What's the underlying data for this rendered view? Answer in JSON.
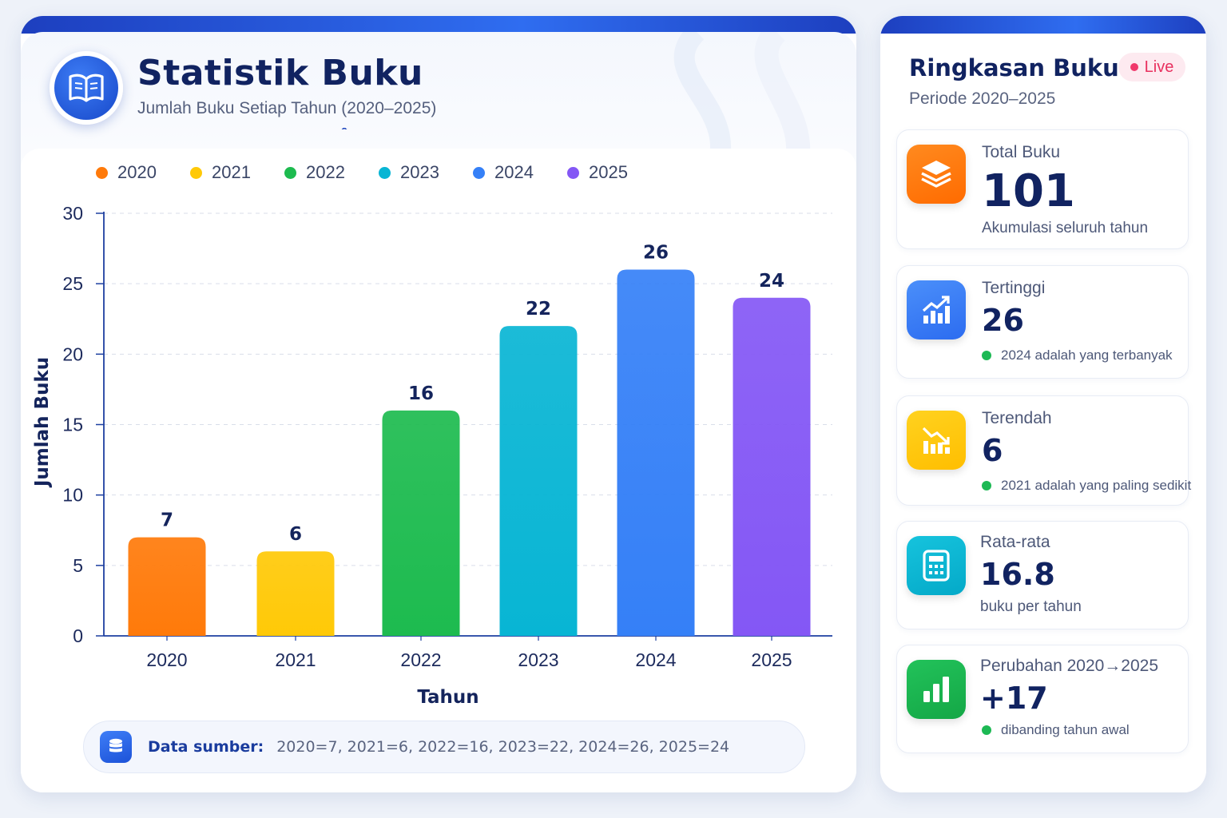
{
  "header": {
    "title": "Statistik Buku",
    "subtitle": "Jumlah Buku Setiap Tahun (2020–2025)",
    "logo_icon": "open-book-icon"
  },
  "colors": {
    "2020": "#ff7a0a",
    "2021": "#ffc907",
    "2022": "#1dbb4f",
    "2023": "#08b5d4",
    "2024": "#3580f7",
    "2025": "#8457f5",
    "accent": "#1d4fd8"
  },
  "legend": [
    {
      "label": "2020",
      "color": "#ff7a0a"
    },
    {
      "label": "2021",
      "color": "#ffc907"
    },
    {
      "label": "2022",
      "color": "#1dbb4f"
    },
    {
      "label": "2023",
      "color": "#08b5d4"
    },
    {
      "label": "2024",
      "color": "#3580f7"
    },
    {
      "label": "2025",
      "color": "#8457f5"
    }
  ],
  "chart_data": {
    "type": "bar",
    "categories": [
      "2020",
      "2021",
      "2022",
      "2023",
      "2024",
      "2025"
    ],
    "values": [
      7,
      6,
      16,
      22,
      26,
      24
    ],
    "value_labels": [
      "7",
      "6",
      "16",
      "22",
      "26",
      "24"
    ],
    "bar_colors": [
      "#ff7a0a",
      "#ffc907",
      "#1dbb4f",
      "#08b5d4",
      "#3580f7",
      "#8457f5"
    ],
    "xlabel": "Tahun",
    "ylabel": "Jumlah Buku",
    "ylim": [
      0,
      30
    ],
    "yticks": [
      "0",
      "5",
      "10",
      "15",
      "20",
      "25",
      "30"
    ],
    "grid": true,
    "legend_position": "top-left"
  },
  "source": {
    "icon": "database-icon",
    "label": "Data sumber:",
    "text": "2020=7, 2021=6, 2022=16, 2023=22, 2024=26, 2025=24"
  },
  "summary": {
    "title": "Ringkasan Buku",
    "period": "Periode 2020–2025",
    "badge": "Live",
    "cards": [
      {
        "label": "Total Buku",
        "value": "101",
        "note": "Akumulasi seluruh tahun",
        "icon": "layers-icon",
        "color": "#ff7a0a"
      },
      {
        "label": "Tertinggi",
        "value": "26",
        "note": "2024 adalah yang terbanyak",
        "icon": "trending-up-icon",
        "color": "#3580f7"
      },
      {
        "label": "Terendah",
        "value": "6",
        "note": "2021 adalah yang paling sedikit",
        "icon": "trending-down-icon",
        "color": "#ffc907"
      },
      {
        "label": "Rata-rata",
        "value": "16.8",
        "note": "buku per tahun",
        "icon": "calculator-icon",
        "color": "#08b5d4"
      },
      {
        "label": "Perubahan 2020→2025",
        "value": "+17",
        "note": "dibanding tahun awal",
        "icon": "bar-chart-icon",
        "color": "#1dbb4f"
      }
    ]
  }
}
